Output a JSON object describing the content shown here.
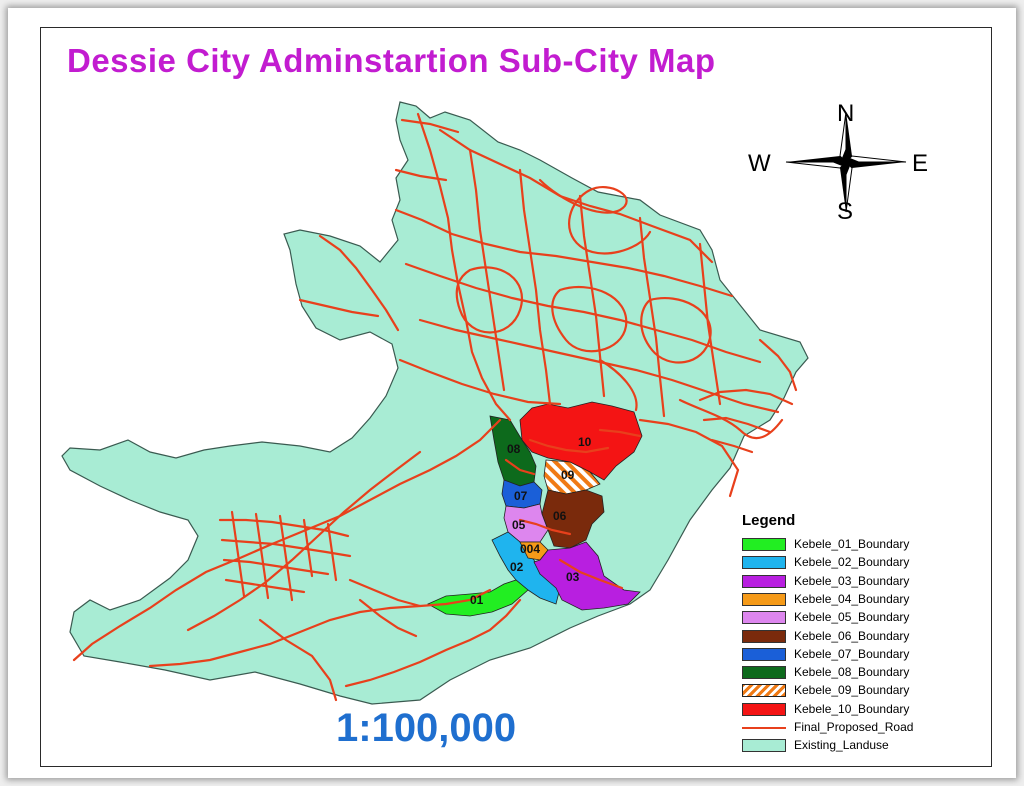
{
  "title": "Dessie City Adminstartion Sub-City  Map",
  "scale": "1:100,000",
  "compass": {
    "north": "N",
    "south": "S",
    "east": "E",
    "west": "W"
  },
  "legend": {
    "title": "Legend",
    "items": [
      {
        "label": "Kebele_01_Boundary",
        "color": "#22ee22",
        "style": "fill"
      },
      {
        "label": "Kebele_02_Boundary",
        "color": "#1fb4ee",
        "style": "fill"
      },
      {
        "label": "Kebele_03_Boundary",
        "color": "#b81fe0",
        "style": "fill"
      },
      {
        "label": "Kebele_04_Boundary",
        "color": "#f59a18",
        "style": "fill"
      },
      {
        "label": "Kebele_05_Boundary",
        "color": "#dd86ee",
        "style": "fill"
      },
      {
        "label": "Kebele_06_Boundary",
        "color": "#7a2a0c",
        "style": "fill"
      },
      {
        "label": "Kebele_07_Boundary",
        "color": "#1a5fd8",
        "style": "fill"
      },
      {
        "label": "Kebele_08_Boundary",
        "color": "#0d6a1c",
        "style": "fill"
      },
      {
        "label": "Kebele_09_Boundary",
        "color": "#f07a14",
        "style": "hatch"
      },
      {
        "label": "Kebele_10_Boundary",
        "color": "#f41414",
        "style": "fill"
      },
      {
        "label": "Final_Proposed_Road",
        "color": "#e8401c",
        "style": "line"
      },
      {
        "label": "Existing_Landuse",
        "color": "#a8ecd4",
        "style": "fill"
      }
    ]
  },
  "kebele_labels": [
    "01",
    "02",
    "03",
    "004",
    "05",
    "06",
    "07",
    "08",
    "09",
    "10"
  ]
}
